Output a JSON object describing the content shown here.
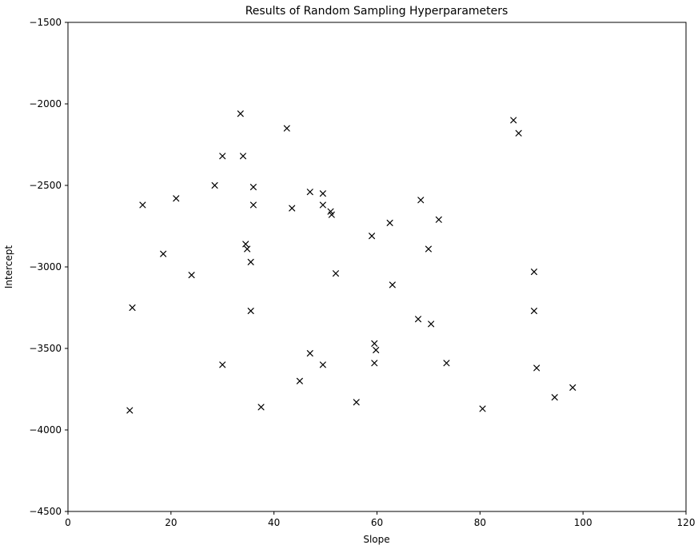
{
  "chart_data": {
    "type": "scatter",
    "title": "Results of Random Sampling Hyperparameters",
    "xlabel": "Slope",
    "ylabel": "Intercept",
    "xlim": [
      0,
      120
    ],
    "ylim": [
      -4500,
      -1500
    ],
    "x_ticks": [
      0,
      20,
      40,
      60,
      80,
      100,
      120
    ],
    "y_ticks": [
      -4500,
      -4000,
      -3500,
      -3000,
      -2500,
      -2000,
      -1500
    ],
    "grid": false,
    "legend": null,
    "marker": "x",
    "marker_color": "#000000",
    "points": [
      [
        33.5,
        -2060
      ],
      [
        42.5,
        -2150
      ],
      [
        86.5,
        -2100
      ],
      [
        87.5,
        -2180
      ],
      [
        30,
        -2320
      ],
      [
        34,
        -2320
      ],
      [
        28.5,
        -2500
      ],
      [
        36,
        -2510
      ],
      [
        14.5,
        -2620
      ],
      [
        21,
        -2580
      ],
      [
        47,
        -2540
      ],
      [
        49.5,
        -2550
      ],
      [
        36,
        -2620
      ],
      [
        43.5,
        -2640
      ],
      [
        49.5,
        -2620
      ],
      [
        51,
        -2660
      ],
      [
        51.2,
        -2680
      ],
      [
        68.5,
        -2590
      ],
      [
        72,
        -2710
      ],
      [
        62.5,
        -2730
      ],
      [
        59,
        -2810
      ],
      [
        18.5,
        -2920
      ],
      [
        34.5,
        -2860
      ],
      [
        34.8,
        -2890
      ],
      [
        35.5,
        -2970
      ],
      [
        70,
        -2890
      ],
      [
        24,
        -3050
      ],
      [
        52,
        -3040
      ],
      [
        90.5,
        -3030
      ],
      [
        63,
        -3110
      ],
      [
        12.5,
        -3250
      ],
      [
        35.5,
        -3270
      ],
      [
        68,
        -3320
      ],
      [
        70.5,
        -3350
      ],
      [
        90.5,
        -3270
      ],
      [
        30,
        -3600
      ],
      [
        47,
        -3530
      ],
      [
        49.5,
        -3600
      ],
      [
        59.5,
        -3470
      ],
      [
        59.8,
        -3510
      ],
      [
        59.5,
        -3590
      ],
      [
        45,
        -3700
      ],
      [
        73.5,
        -3590
      ],
      [
        91,
        -3620
      ],
      [
        56,
        -3830
      ],
      [
        37.5,
        -3860
      ],
      [
        12,
        -3880
      ],
      [
        80.5,
        -3870
      ],
      [
        94.5,
        -3800
      ],
      [
        98,
        -3740
      ]
    ]
  }
}
